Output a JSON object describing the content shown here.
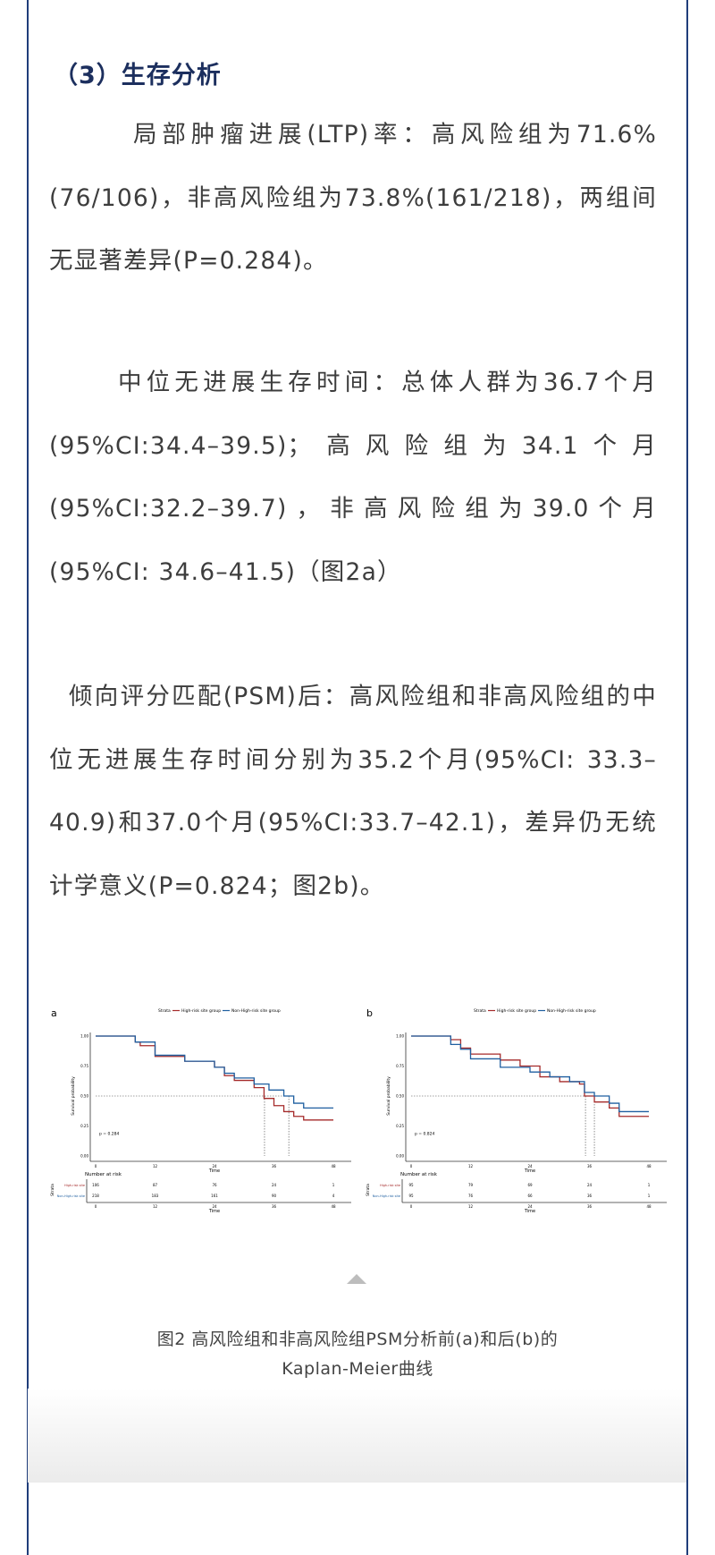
{
  "section": {
    "heading": "（3）生存分析",
    "paragraphs": [
      "局部肿瘤进展(LTP)率：高风险组为71.6%(76/106)，非高风险组为73.8%(161/218)，两组间无显著差异(P=0.284)。",
      "中位无进展生存时间：总体人群为36.7个月(95%CI:34.4–39.5)；高风险组为34.1个月(95%CI:32.2–39.7)，非高风险组为39.0个月(95%CI: 34.6–41.5)（图2a）",
      "倾向评分匹配(PSM)后：高风险组和非高风险组的中位无进展生存时间分别为35.2个月(95%CI: 33.3–40.9)和37.0个月(95%CI:33.7–42.1)，差异仍无统计学意义(P=0.824；图2b)。"
    ]
  },
  "figure": {
    "caption_line1": "图2 高风险组和非高风险组PSM分析前(a)和后(b)的",
    "caption_line2": "Kaplan-Meier曲线",
    "expand_icon": "triangle-up-icon"
  },
  "colors": {
    "frame": "#1f3d7a",
    "heading": "#1c2f5e",
    "high_risk": "#a52a2a",
    "non_high_risk": "#1f5fa0"
  },
  "chart_data": [
    {
      "type": "line",
      "panel_label": "a",
      "legend_title": "Strata",
      "legend_position": "top",
      "xlabel": "Time",
      "ylabel": "Survival probability",
      "xlim": [
        0,
        48
      ],
      "ylim": [
        0,
        1
      ],
      "xticks": [
        "0",
        "12",
        "24",
        "36",
        "48"
      ],
      "yticks": [
        "0.00",
        "0.25",
        "0.50",
        "0.75",
        "1.00"
      ],
      "p_value_label": "p = 0.284",
      "median_line": 0.5,
      "medians": [
        34.1,
        39.0
      ],
      "series": [
        {
          "name": "High-risk site group",
          "color": "#a52a2a",
          "x": [
            0,
            5,
            8,
            9,
            12,
            18,
            24,
            26,
            28,
            32,
            34,
            36,
            38,
            40,
            42,
            48
          ],
          "y": [
            1,
            1,
            0.95,
            0.92,
            0.83,
            0.79,
            0.74,
            0.67,
            0.63,
            0.57,
            0.48,
            0.42,
            0.37,
            0.33,
            0.3,
            0.3
          ]
        },
        {
          "name": "Non-High-risk site group",
          "color": "#1f5fa0",
          "x": [
            0,
            5,
            8,
            12,
            18,
            24,
            26,
            28,
            32,
            35,
            38,
            40,
            42,
            48
          ],
          "y": [
            1,
            1,
            0.95,
            0.84,
            0.79,
            0.74,
            0.69,
            0.65,
            0.6,
            0.55,
            0.5,
            0.44,
            0.4,
            0.4
          ]
        }
      ],
      "risk_table": {
        "title": "Number at risk",
        "strata_label": "Strata",
        "rows": [
          {
            "name": "High-risk site",
            "values": [
              "106",
              "87",
              "76",
              "24",
              "1"
            ]
          },
          {
            "name": "Non-High-risk site",
            "values": [
              "218",
              "183",
              "161",
              "90",
              "4"
            ]
          }
        ]
      }
    },
    {
      "type": "line",
      "panel_label": "b",
      "legend_title": "Strata",
      "legend_position": "top",
      "xlabel": "Time",
      "ylabel": "Survival probability",
      "xlim": [
        0,
        48
      ],
      "ylim": [
        0,
        1
      ],
      "xticks": [
        "0",
        "12",
        "24",
        "36",
        "48"
      ],
      "yticks": [
        "0.00",
        "0.25",
        "0.50",
        "0.75",
        "1.00"
      ],
      "p_value_label": "p = 0.824",
      "median_line": 0.5,
      "medians": [
        35.2,
        37.0
      ],
      "series": [
        {
          "name": "High-risk site group",
          "color": "#a52a2a",
          "x": [
            0,
            6,
            8,
            10,
            12,
            18,
            22,
            26,
            30,
            34,
            35,
            37,
            40,
            42,
            48
          ],
          "y": [
            1,
            1,
            0.97,
            0.9,
            0.85,
            0.8,
            0.75,
            0.66,
            0.62,
            0.6,
            0.5,
            0.45,
            0.4,
            0.33,
            0.33
          ]
        },
        {
          "name": "Non-High-risk site group",
          "color": "#1f5fa0",
          "x": [
            0,
            6,
            8,
            10,
            12,
            18,
            24,
            28,
            32,
            35,
            37,
            40,
            42,
            48
          ],
          "y": [
            1,
            1,
            0.93,
            0.89,
            0.81,
            0.74,
            0.7,
            0.66,
            0.62,
            0.53,
            0.5,
            0.44,
            0.37,
            0.37
          ]
        }
      ],
      "risk_table": {
        "title": "Number at risk",
        "strata_label": "Strata",
        "rows": [
          {
            "name": "High-risk site",
            "values": [
              "95",
              "79",
              "69",
              "24",
              "1"
            ]
          },
          {
            "name": "Non-High-risk site",
            "values": [
              "95",
              "76",
              "66",
              "36",
              "1"
            ]
          }
        ]
      }
    }
  ]
}
